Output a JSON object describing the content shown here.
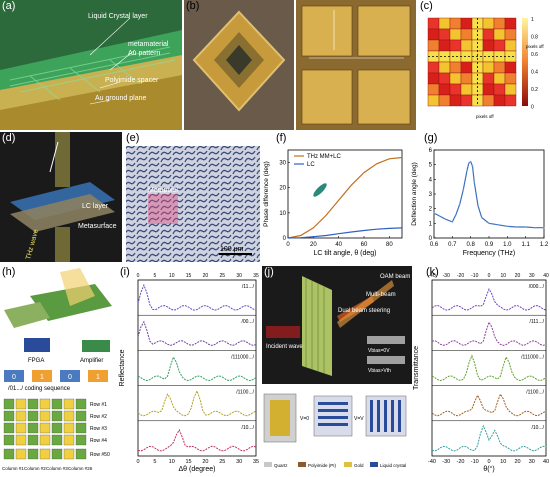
{
  "panels": {
    "a": {
      "tag": "(a)",
      "labels": [
        "Liquid Crystal layer",
        "metamaterial",
        "Au pattern",
        "Polyimide spacer",
        "Au ground plane"
      ]
    },
    "b": {
      "tag": "(b)"
    },
    "c": {
      "tag": "(c)",
      "pixel_off": "pixels off",
      "pixel_off2": "pixels off",
      "colorbar": [
        "1",
        "0.8",
        "0.6",
        "0.4",
        "0.2",
        "0"
      ]
    },
    "d": {
      "tag": "(d)",
      "lc_layer": "LC layer",
      "metasurface": "Metasurface",
      "thz_wave": "THz wave"
    },
    "e": {
      "tag": "(e)",
      "metapixel": "Metapixel",
      "scale": "100 μm"
    },
    "f": {
      "tag": "(f)",
      "ylabel": "Phase difference (deg)",
      "xlabel": "LC tilt angle, θ (deg)",
      "legend": [
        "THz MM+LC",
        "LC"
      ],
      "yticks": [
        "0",
        "10",
        "20",
        "30"
      ],
      "xticks": [
        "0",
        "20",
        "40",
        "60",
        "80"
      ]
    },
    "g": {
      "tag": "(g)",
      "ylabel": "Deflection angle (deg)",
      "xlabel": "Frequency (THz)",
      "yticks": [
        "0",
        "1",
        "2",
        "3",
        "4",
        "5",
        "6"
      ],
      "xticks": [
        "0.6",
        "0.7",
        "0.8",
        "0.9",
        "1.0",
        "1.1",
        "1.2"
      ]
    },
    "h": {
      "tag": "(h)",
      "fpga": "FPGA",
      "amplifier": "Amplifier",
      "coding": "/01.../ coding sequence",
      "bits": [
        "0",
        "1",
        "0",
        "1"
      ],
      "rows": [
        "Row #1",
        "Row #2",
        "Row #3",
        "Row #4",
        "Row #50"
      ],
      "cols": [
        "Column #1",
        "Column #2",
        "Column #3",
        "Column #26"
      ]
    },
    "i": {
      "tag": "(i)",
      "ylabel": "Reflectance",
      "xlabel": "Δθ (degree)",
      "xticks": [
        "0",
        "5",
        "10",
        "15",
        "20",
        "25",
        "30",
        "35"
      ],
      "codes": [
        "/11.../",
        "/00.../",
        "/111000.../",
        "/1100.../",
        "/10.../"
      ]
    },
    "j": {
      "tag": "(j)",
      "oam": "OAM beam",
      "multi": "Multi-beam",
      "dual": "Dual beam steering",
      "incident": "Incident wave",
      "v1": "Vbias=0V",
      "v2": "Vbias>Vth",
      "v0": "V=0",
      "vv": "V=V",
      "legend": [
        "Quartz",
        "Polyimide (PI)",
        "Gold",
        "Liquid crystal"
      ]
    },
    "k": {
      "tag": "(k)",
      "ylabel": "Transmittance",
      "xlabel": "θ(°)",
      "xticks": [
        "-40",
        "-30",
        "-20",
        "-10",
        "0",
        "10",
        "20",
        "30",
        "40"
      ],
      "codes": [
        "/000.../",
        "/111.../",
        "/111000.../",
        "/1100.../",
        "/10.../"
      ]
    }
  },
  "chart_data": [
    {
      "panel": "f",
      "type": "line",
      "xlabel": "LC tilt angle, θ (deg)",
      "ylabel": "Phase difference (deg)",
      "xlim": [
        0,
        90
      ],
      "ylim": [
        0,
        35
      ],
      "series": [
        {
          "name": "THz MM+LC",
          "x": [
            0,
            10,
            20,
            30,
            40,
            50,
            60,
            70,
            80,
            90
          ],
          "y": [
            0,
            1,
            4,
            9,
            15,
            21,
            26,
            29.5,
            31.5,
            32
          ]
        },
        {
          "name": "LC",
          "x": [
            0,
            10,
            20,
            30,
            40,
            50,
            60,
            70,
            80,
            90
          ],
          "y": [
            0,
            0.1,
            0.5,
            1,
            1.7,
            2.4,
            3,
            3.5,
            3.8,
            4
          ]
        }
      ]
    },
    {
      "panel": "g",
      "type": "line",
      "xlabel": "Frequency (THz)",
      "ylabel": "Deflection angle (deg)",
      "xlim": [
        0.6,
        1.2
      ],
      "ylim": [
        0,
        6
      ],
      "series": [
        {
          "x": [
            0.6,
            0.63,
            0.66,
            0.7,
            0.72,
            0.74,
            0.76,
            0.78,
            0.79,
            0.8,
            0.81,
            0.82,
            0.84,
            0.86,
            0.9,
            0.95,
            1.0,
            1.05,
            1.1,
            1.15,
            1.2
          ],
          "y": [
            1.7,
            1.5,
            1.3,
            1.1,
            1.6,
            2.3,
            3.3,
            4.6,
            5.1,
            5.2,
            4.9,
            3.8,
            2.2,
            1.4,
            1.0,
            0.9,
            0.8,
            0.75,
            0.75,
            0.7,
            0.7
          ]
        }
      ]
    }
  ]
}
